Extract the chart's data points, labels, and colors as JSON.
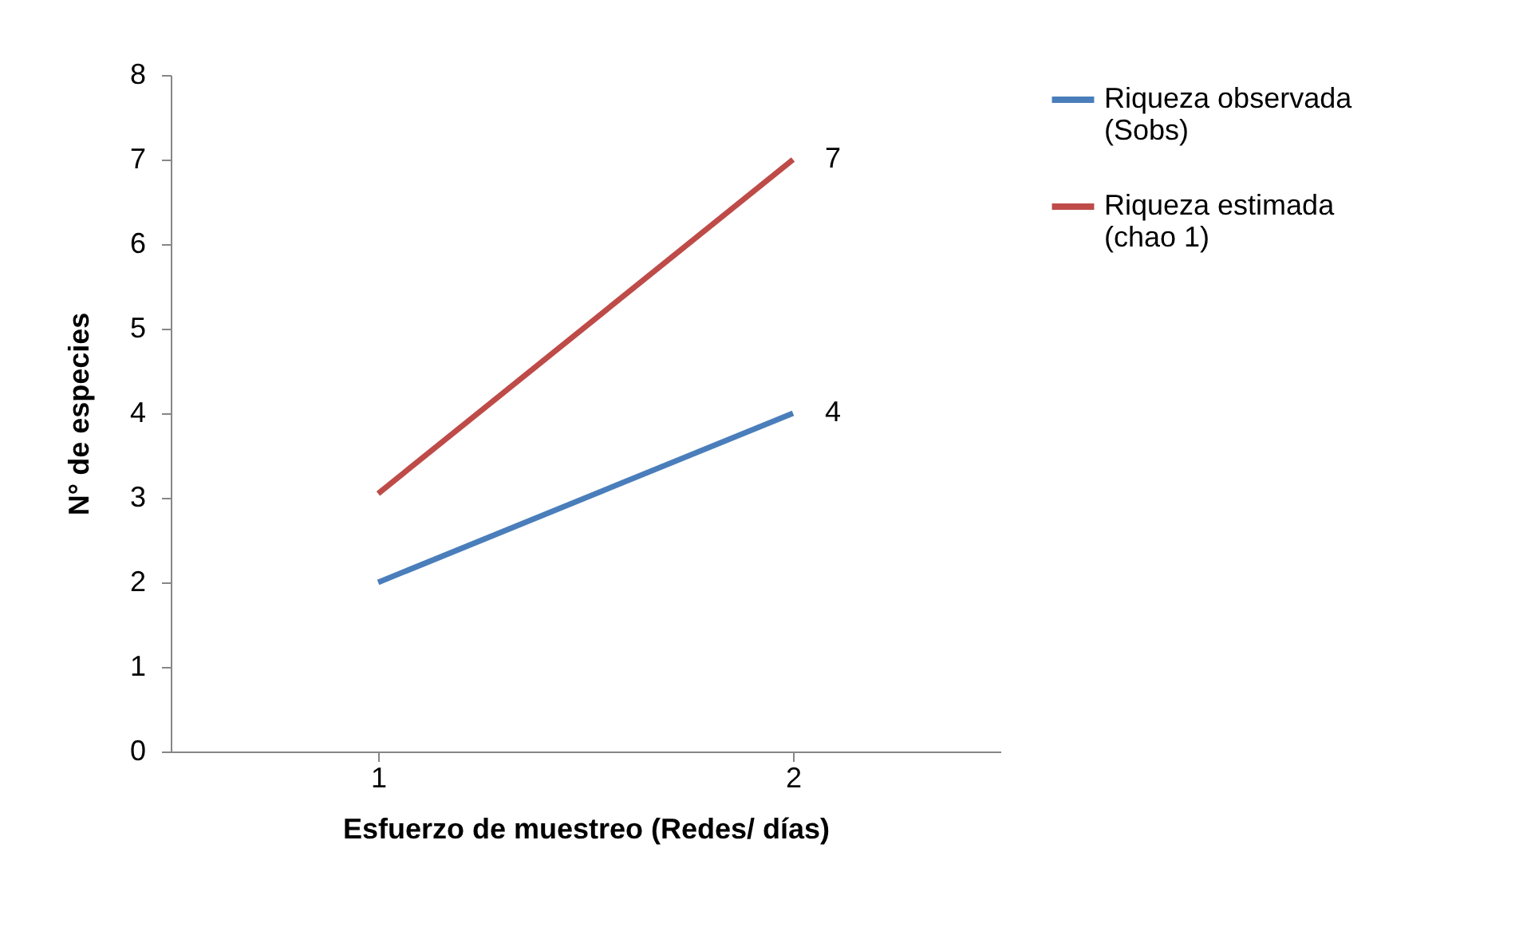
{
  "chart_data": {
    "type": "line",
    "xlabel": "Esfuerzo de muestreo (Redes/ días)",
    "ylabel": "N° de especies",
    "categories": [
      "1",
      "2"
    ],
    "series": [
      {
        "name": "Riqueza observada (Sobs)",
        "color": "#4a7ebb",
        "values": [
          2,
          4
        ],
        "value_labels": [
          null,
          "4"
        ]
      },
      {
        "name": "Riqueza estimada (chao 1)",
        "color": "#be4b48",
        "values": [
          3.05,
          7
        ],
        "value_labels": [
          null,
          "7"
        ]
      }
    ],
    "ylim": [
      0,
      8
    ],
    "yticks": [
      0,
      1,
      2,
      3,
      4,
      5,
      6,
      7,
      8
    ],
    "grid": false,
    "legend": "right",
    "marker": "none",
    "line_style": "solid"
  }
}
